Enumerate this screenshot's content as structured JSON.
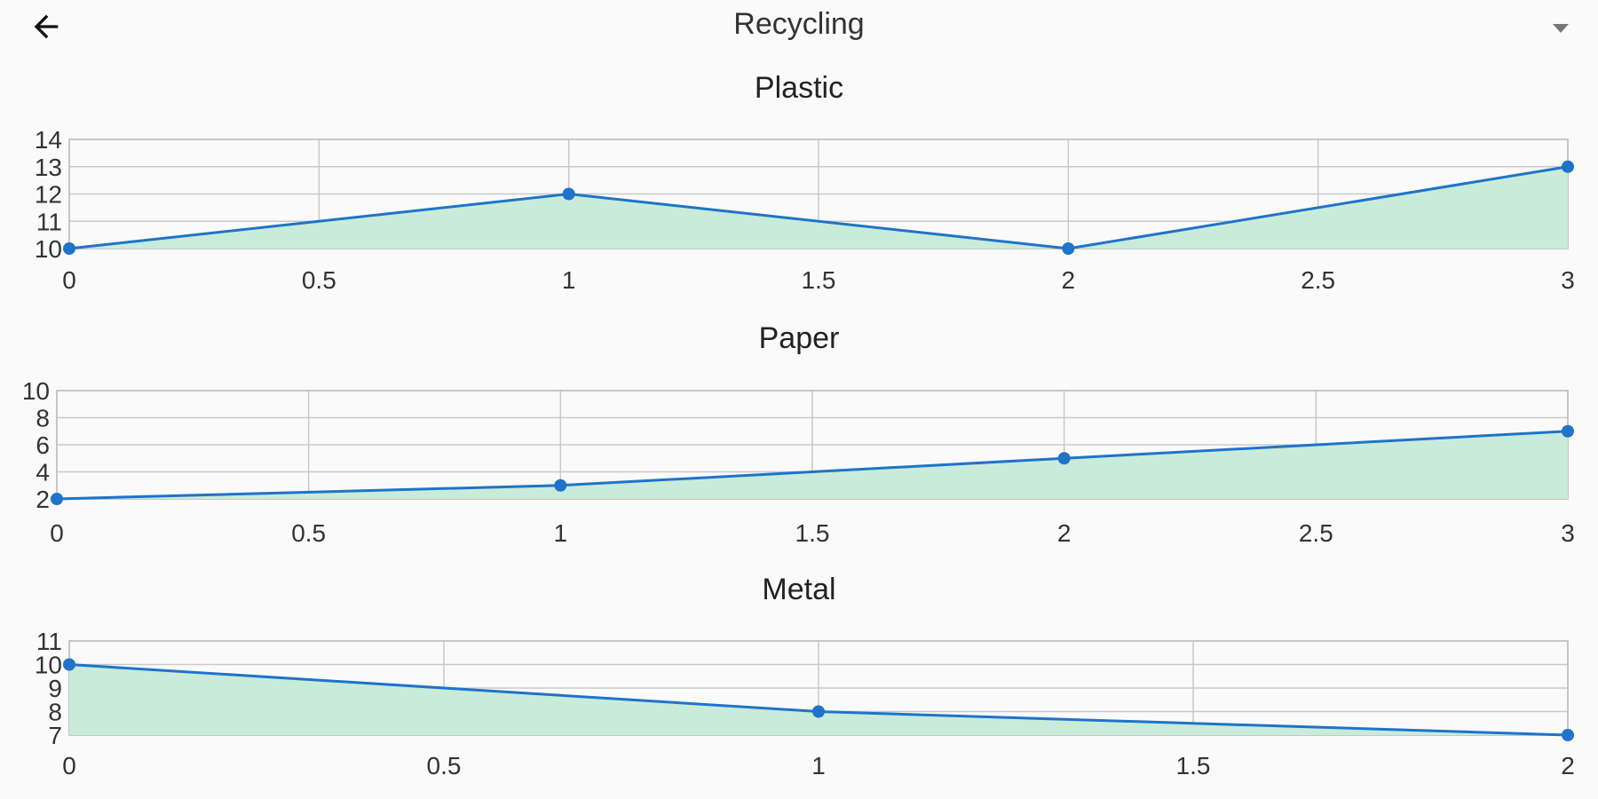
{
  "header": {
    "title": "Recycling",
    "back_icon": "arrow-left-icon",
    "dropdown_icon": "caret-down-icon"
  },
  "colors": {
    "line": "#1f73c9",
    "point": "#1f73c9",
    "fill": "#c9ebd9",
    "fill_stroke": "#9fd8b8"
  },
  "chart_data": [
    {
      "type": "area",
      "title": "Plastic",
      "x": [
        0,
        1,
        2,
        3
      ],
      "y": [
        10,
        12,
        10,
        13
      ],
      "xlim": [
        0,
        3
      ],
      "ylim": [
        10,
        14
      ],
      "xticks": [
        "0",
        "0.5",
        "1",
        "1.5",
        "2",
        "2.5",
        "3"
      ],
      "xtick_values": [
        0,
        0.5,
        1,
        1.5,
        2,
        2.5,
        3
      ],
      "yticks": [
        "10",
        "11",
        "12",
        "13",
        "14"
      ],
      "ytick_values": [
        10,
        11,
        12,
        13,
        14
      ],
      "grid": true
    },
    {
      "type": "area",
      "title": "Paper",
      "x": [
        0,
        1,
        2,
        3
      ],
      "y": [
        2,
        3,
        5,
        7
      ],
      "xlim": [
        0,
        3
      ],
      "ylim": [
        2,
        10
      ],
      "xticks": [
        "0",
        "0.5",
        "1",
        "1.5",
        "2",
        "2.5",
        "3"
      ],
      "xtick_values": [
        0,
        0.5,
        1,
        1.5,
        2,
        2.5,
        3
      ],
      "yticks": [
        "2",
        "4",
        "6",
        "8",
        "10"
      ],
      "ytick_values": [
        2,
        4,
        6,
        8,
        10
      ],
      "grid": true
    },
    {
      "type": "area",
      "title": "Metal",
      "x": [
        0,
        1,
        2
      ],
      "y": [
        10,
        8,
        7
      ],
      "xlim": [
        0,
        2
      ],
      "ylim": [
        7,
        11
      ],
      "xticks": [
        "0",
        "0.5",
        "1",
        "1.5",
        "2"
      ],
      "xtick_values": [
        0,
        0.5,
        1,
        1.5,
        2
      ],
      "yticks": [
        "7",
        "8",
        "9",
        "10",
        "11"
      ],
      "ytick_values": [
        7,
        8,
        9,
        10,
        11
      ],
      "grid": true
    }
  ]
}
